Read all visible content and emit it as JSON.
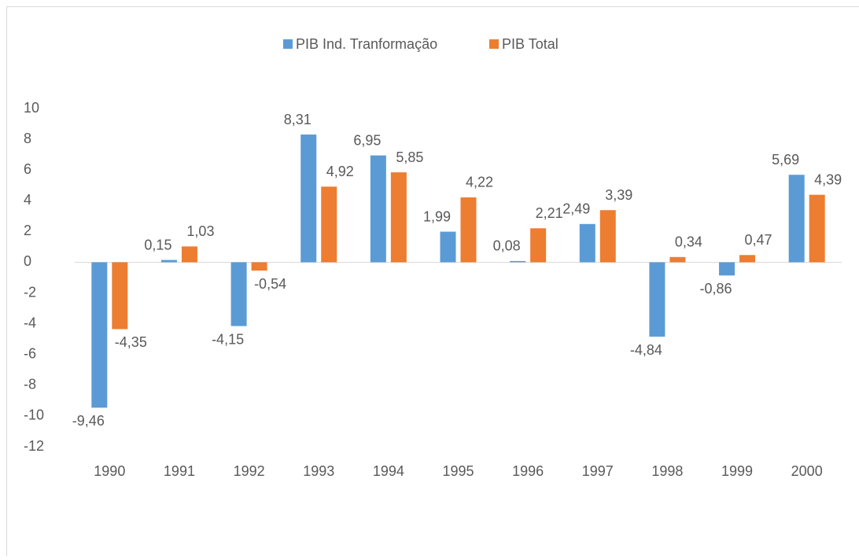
{
  "chart_data": {
    "type": "bar",
    "categories": [
      "1990",
      "1991",
      "1992",
      "1993",
      "1994",
      "1995",
      "1996",
      "1997",
      "1998",
      "1999",
      "2000"
    ],
    "series": [
      {
        "name": "PIB Ind. Tranformação",
        "color": "#5b9bd5",
        "values": [
          -9.46,
          0.15,
          -4.15,
          8.31,
          6.95,
          1.99,
          0.08,
          2.49,
          -4.84,
          -0.86,
          5.69
        ],
        "value_labels": [
          "-9,46",
          "0,15",
          "-4,15",
          "8,31",
          "6,95",
          "1,99",
          "0,08",
          "2,49",
          "-4,84",
          "-0,86",
          "5,69"
        ]
      },
      {
        "name": "PIB Total",
        "color": "#ed7d31",
        "values": [
          -4.35,
          1.03,
          -0.54,
          4.92,
          5.85,
          4.22,
          2.21,
          3.39,
          0.34,
          0.47,
          4.39
        ],
        "value_labels": [
          "-4,35",
          "1,03",
          "-0,54",
          "4,92",
          "5,85",
          "4,22",
          "2,21",
          "3,39",
          "0,34",
          "0,47",
          "4,39"
        ]
      }
    ],
    "ylim": [
      -12,
      10
    ],
    "yticks": [
      -12,
      -10,
      -8,
      -6,
      -4,
      -2,
      0,
      2,
      4,
      6,
      8,
      10
    ],
    "grid": false,
    "legend": "top"
  }
}
